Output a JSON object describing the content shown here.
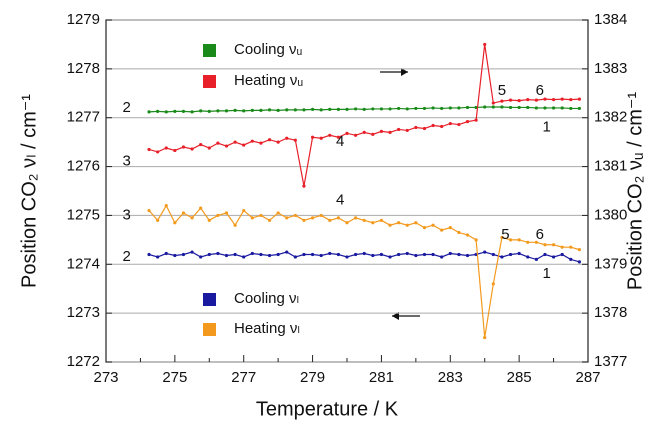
{
  "chart_data": {
    "type": "line",
    "x_label": "Temperature / K",
    "y_label": "Position CO₂ νₗ / cm⁻¹",
    "y2_label": "Position CO₂ νᵤ / cm⁻¹",
    "xlim": [
      273,
      287
    ],
    "xticks": [
      273,
      275,
      277,
      279,
      281,
      283,
      285,
      287
    ],
    "xminor": [
      274,
      276,
      278,
      280,
      282,
      284,
      286
    ],
    "ylim": [
      1272,
      1279
    ],
    "yticks": [
      1272,
      1273,
      1274,
      1275,
      1276,
      1277,
      1278,
      1279
    ],
    "y2lim": [
      1377,
      1384
    ],
    "y2ticks": [
      1377,
      1378,
      1379,
      1380,
      1381,
      1382,
      1383,
      1384
    ],
    "grid": true,
    "annotations": [
      "2",
      "3",
      "3",
      "2",
      "4",
      "4",
      "5",
      "6",
      "5",
      "6",
      "1",
      "1"
    ],
    "x": [
      274.25,
      274.5,
      274.75,
      275,
      275.25,
      275.5,
      275.75,
      276,
      276.25,
      276.5,
      276.75,
      277,
      277.25,
      277.5,
      277.75,
      278,
      278.25,
      278.5,
      278.75,
      279,
      279.25,
      279.5,
      279.75,
      280,
      280.25,
      280.5,
      280.75,
      281,
      281.25,
      281.5,
      281.75,
      282,
      282.25,
      282.5,
      282.75,
      283,
      283.25,
      283.5,
      283.75,
      284,
      284.25,
      284.5,
      284.75,
      285,
      285.25,
      285.5,
      285.75,
      286,
      286.25,
      286.5,
      286.75
    ],
    "series": [
      {
        "name": "Cooling νᵤ",
        "color": "#1a8a1a",
        "axis": "y2",
        "values": [
          1382.12,
          1382.13,
          1382.12,
          1382.13,
          1382.13,
          1382.12,
          1382.14,
          1382.13,
          1382.14,
          1382.14,
          1382.15,
          1382.14,
          1382.15,
          1382.15,
          1382.16,
          1382.15,
          1382.16,
          1382.16,
          1382.16,
          1382.17,
          1382.16,
          1382.17,
          1382.17,
          1382.17,
          1382.18,
          1382.17,
          1382.18,
          1382.18,
          1382.18,
          1382.19,
          1382.18,
          1382.19,
          1382.19,
          1382.2,
          1382.19,
          1382.2,
          1382.2,
          1382.21,
          1382.21,
          1382.22,
          1382.22,
          1382.22,
          1382.21,
          1382.21,
          1382.21,
          1382.2,
          1382.2,
          1382.2,
          1382.2,
          1382.19,
          1382.19
        ]
      },
      {
        "name": "Heating νᵤ",
        "color": "#e8202a",
        "axis": "y2",
        "values": [
          1381.35,
          1381.3,
          1381.38,
          1381.33,
          1381.4,
          1381.36,
          1381.45,
          1381.38,
          1381.48,
          1381.42,
          1381.5,
          1381.44,
          1381.52,
          1381.48,
          1381.55,
          1381.5,
          1381.58,
          1381.54,
          1380.6,
          1381.6,
          1381.58,
          1381.64,
          1381.6,
          1381.68,
          1381.64,
          1381.7,
          1381.66,
          1381.72,
          1381.7,
          1381.76,
          1381.74,
          1381.8,
          1381.78,
          1381.84,
          1381.82,
          1381.88,
          1381.86,
          1381.92,
          1381.95,
          1383.5,
          1382.3,
          1382.34,
          1382.36,
          1382.35,
          1382.37,
          1382.36,
          1382.38,
          1382.37,
          1382.38,
          1382.37,
          1382.38
        ]
      },
      {
        "name": "Cooling νₗ",
        "color": "#1a1aa0",
        "axis": "y",
        "values": [
          1274.2,
          1274.15,
          1274.22,
          1274.18,
          1274.2,
          1274.25,
          1274.15,
          1274.2,
          1274.22,
          1274.18,
          1274.2,
          1274.15,
          1274.22,
          1274.2,
          1274.18,
          1274.2,
          1274.25,
          1274.15,
          1274.2,
          1274.2,
          1274.18,
          1274.22,
          1274.2,
          1274.15,
          1274.2,
          1274.22,
          1274.18,
          1274.2,
          1274.15,
          1274.2,
          1274.22,
          1274.18,
          1274.2,
          1274.2,
          1274.15,
          1274.22,
          1274.2,
          1274.18,
          1274.2,
          1274.25,
          1274.2,
          1274.15,
          1274.2,
          1274.22,
          1274.15,
          1274.1,
          1274.2,
          1274.15,
          1274.2,
          1274.1,
          1274.05
        ]
      },
      {
        "name": "Heating νₗ",
        "color": "#f39a1e",
        "axis": "y",
        "values": [
          1275.1,
          1274.9,
          1275.2,
          1274.85,
          1275.05,
          1274.95,
          1275.15,
          1274.9,
          1275.0,
          1275.05,
          1274.8,
          1275.1,
          1274.95,
          1275.0,
          1274.9,
          1275.05,
          1274.95,
          1275.0,
          1274.9,
          1274.95,
          1275.0,
          1274.9,
          1274.95,
          1274.85,
          1274.95,
          1274.9,
          1274.85,
          1274.9,
          1274.8,
          1274.85,
          1274.8,
          1274.85,
          1274.75,
          1274.8,
          1274.7,
          1274.75,
          1274.65,
          1274.6,
          1274.5,
          1272.5,
          1273.6,
          1274.55,
          1274.5,
          1274.5,
          1274.45,
          1274.45,
          1274.4,
          1274.4,
          1274.35,
          1274.35,
          1274.3
        ]
      }
    ]
  }
}
